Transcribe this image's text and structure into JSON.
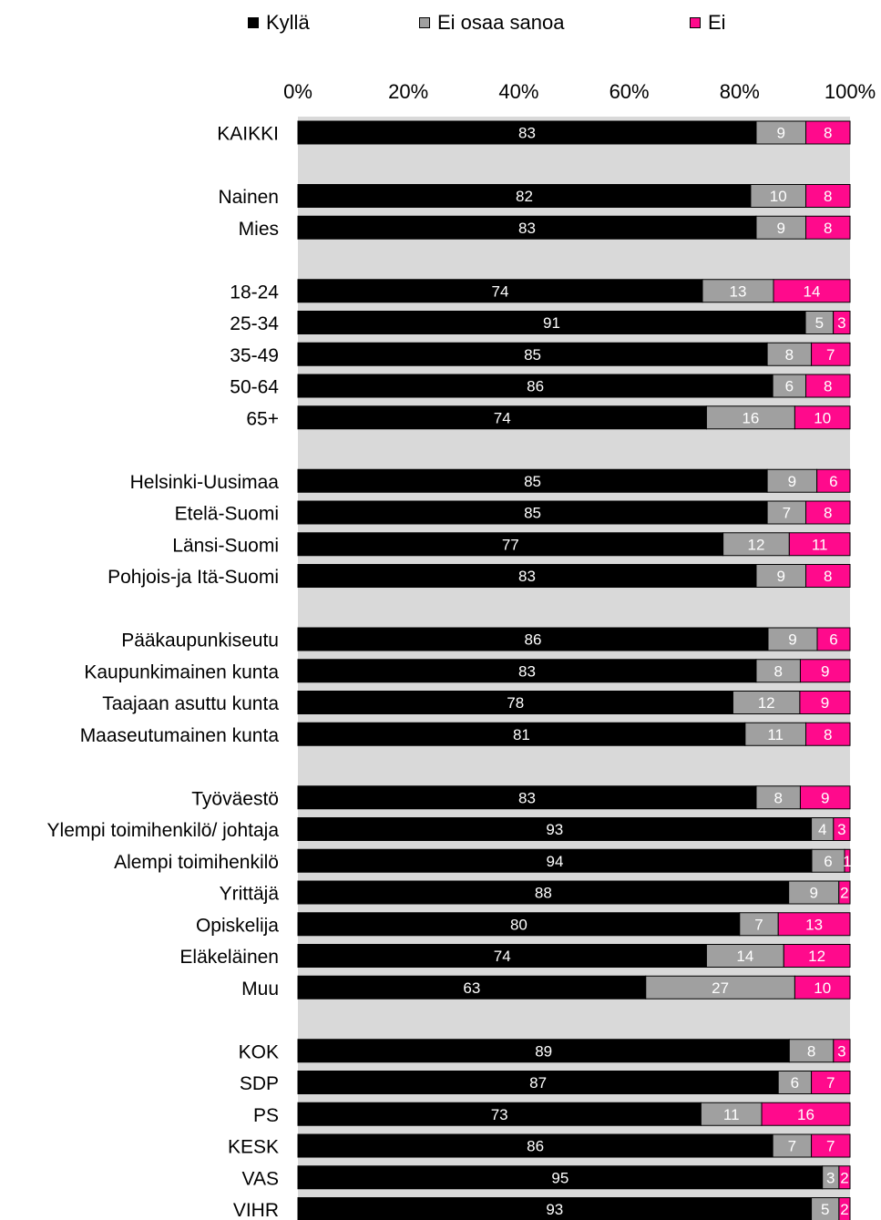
{
  "chart_data": {
    "type": "bar",
    "orientation": "horizontal",
    "stacked": true,
    "xlim": [
      0,
      100
    ],
    "x_ticks": [
      "0%",
      "20%",
      "40%",
      "60%",
      "80%",
      "100%"
    ],
    "legend": {
      "position": "top",
      "items": [
        {
          "name": "Kyllä",
          "color": "#000000"
        },
        {
          "name": "Ei osaa sanoa",
          "color": "#a0a0a0"
        },
        {
          "name": "Ei",
          "color": "#ff0a8c"
        }
      ]
    },
    "rows": [
      {
        "label": "KAIKKI",
        "values": [
          83,
          9,
          8
        ]
      },
      null,
      {
        "label": "Nainen",
        "values": [
          82,
          10,
          8
        ]
      },
      {
        "label": "Mies",
        "values": [
          83,
          9,
          8
        ]
      },
      null,
      {
        "label": "18-24",
        "values": [
          74,
          13,
          14
        ]
      },
      {
        "label": "25-34",
        "values": [
          91,
          5,
          3
        ]
      },
      {
        "label": "35-49",
        "values": [
          85,
          8,
          7
        ]
      },
      {
        "label": "50-64",
        "values": [
          86,
          6,
          8
        ]
      },
      {
        "label": "65+",
        "values": [
          74,
          16,
          10
        ]
      },
      null,
      {
        "label": "Helsinki-Uusimaa",
        "values": [
          85,
          9,
          6
        ]
      },
      {
        "label": "Etelä-Suomi",
        "values": [
          85,
          7,
          8
        ]
      },
      {
        "label": "Länsi-Suomi",
        "values": [
          77,
          12,
          11
        ]
      },
      {
        "label": "Pohjois-ja Itä-Suomi",
        "values": [
          83,
          9,
          8
        ]
      },
      null,
      {
        "label": "Pääkaupunkiseutu",
        "values": [
          86,
          9,
          6
        ]
      },
      {
        "label": "Kaupunkimainen kunta",
        "values": [
          83,
          8,
          9
        ]
      },
      {
        "label": "Taajaan asuttu kunta",
        "values": [
          78,
          12,
          9
        ]
      },
      {
        "label": "Maaseutumainen kunta",
        "values": [
          81,
          11,
          8
        ]
      },
      null,
      {
        "label": "Työväestö",
        "values": [
          83,
          8,
          9
        ]
      },
      {
        "label": "Ylempi toimihenkilö/ johtaja",
        "values": [
          93,
          4,
          3
        ]
      },
      {
        "label": "Alempi toimihenkilö",
        "values": [
          94,
          6,
          1
        ]
      },
      {
        "label": "Yrittäjä",
        "values": [
          88,
          9,
          2
        ]
      },
      {
        "label": "Opiskelija",
        "values": [
          80,
          7,
          13
        ]
      },
      {
        "label": "Eläkeläinen",
        "values": [
          74,
          14,
          12
        ]
      },
      {
        "label": "Muu",
        "values": [
          63,
          27,
          10
        ]
      },
      null,
      {
        "label": "KOK",
        "values": [
          89,
          8,
          3
        ]
      },
      {
        "label": "SDP",
        "values": [
          87,
          6,
          7
        ]
      },
      {
        "label": "PS",
        "values": [
          73,
          11,
          16
        ]
      },
      {
        "label": "KESK",
        "values": [
          86,
          7,
          7
        ]
      },
      {
        "label": "VAS",
        "values": [
          95,
          3,
          2
        ]
      },
      {
        "label": "VIHR",
        "values": [
          93,
          5,
          2
        ]
      }
    ]
  }
}
